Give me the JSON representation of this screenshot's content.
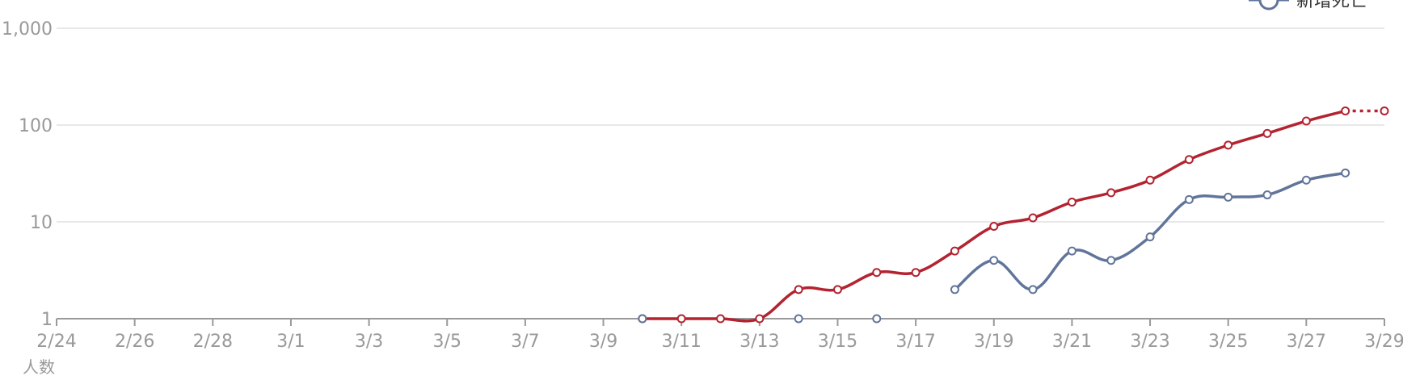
{
  "chart_data": {
    "type": "line",
    "y_scale": "log",
    "ylim": [
      1,
      1000
    ],
    "yticks": [
      1,
      10,
      100,
      1000
    ],
    "ytick_labels": [
      "1",
      "10",
      "100",
      "1,000"
    ],
    "ylabel": "人数",
    "xlabel": "",
    "grid": true,
    "legend": {
      "placement": "top-right"
    },
    "x_start": "2/24",
    "x_end": "3/29",
    "x_tick_labels": [
      "2/24",
      "2/26",
      "2/28",
      "3/1",
      "3/3",
      "3/5",
      "3/7",
      "3/9",
      "3/11",
      "3/13",
      "3/15",
      "3/17",
      "3/19",
      "3/21",
      "3/23",
      "3/25",
      "3/27",
      "3/29"
    ],
    "series": [
      {
        "name": "",
        "color": "#b32330",
        "dotted_tail": [
          [
            "3/28",
            140
          ],
          [
            "3/29",
            140
          ]
        ],
        "points": [
          [
            "3/10",
            1
          ],
          [
            "3/11",
            1
          ],
          [
            "3/12",
            1
          ],
          [
            "3/13",
            1
          ],
          [
            "3/14",
            2
          ],
          [
            "3/15",
            2
          ],
          [
            "3/16",
            3
          ],
          [
            "3/17",
            3
          ],
          [
            "3/18",
            5
          ],
          [
            "3/19",
            9
          ],
          [
            "3/20",
            11
          ],
          [
            "3/21",
            16
          ],
          [
            "3/22",
            20
          ],
          [
            "3/23",
            27
          ],
          [
            "3/24",
            44
          ],
          [
            "3/25",
            62
          ],
          [
            "3/26",
            82
          ],
          [
            "3/27",
            110
          ],
          [
            "3/28",
            140
          ]
        ]
      },
      {
        "name": "新增死亡",
        "color": "#61759a",
        "points": [
          [
            "3/18",
            2
          ],
          [
            "3/19",
            4
          ],
          [
            "3/20",
            2
          ],
          [
            "3/21",
            5
          ],
          [
            "3/22",
            4
          ],
          [
            "3/23",
            7
          ],
          [
            "3/24",
            17
          ],
          [
            "3/25",
            18
          ],
          [
            "3/26",
            19
          ],
          [
            "3/27",
            27
          ],
          [
            "3/28",
            32
          ]
        ],
        "isolated_points": [
          [
            "3/10",
            1
          ],
          [
            "3/14",
            1
          ],
          [
            "3/16",
            1
          ]
        ]
      }
    ]
  }
}
